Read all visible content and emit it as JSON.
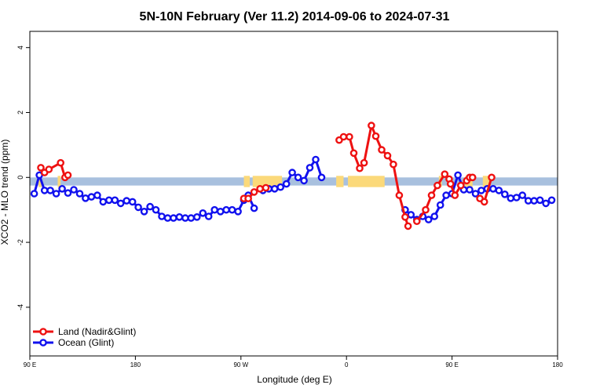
{
  "chart_data": {
    "type": "line",
    "title": "5N-10N February (Ver 11.2)   2014-09-06 to 2024-07-31",
    "xlabel": "Longitude (deg E)",
    "ylabel": "XCO2 - MLO trend (ppm)",
    "xlim": [
      90,
      450
    ],
    "ylim": [
      -5.5,
      4.5
    ],
    "x_ticks": [
      {
        "value": 90,
        "label": "90 E"
      },
      {
        "value": 162,
        "label": "180"
      },
      {
        "value": 234,
        "label": "90 W"
      },
      {
        "value": 306,
        "label": "0"
      },
      {
        "value": 378,
        "label": "90 E"
      },
      {
        "value": 450,
        "label": "180"
      }
    ],
    "y_ticks": [
      {
        "value": -4,
        "label": "-4"
      },
      {
        "value": -2,
        "label": "-2"
      },
      {
        "value": 0,
        "label": "0"
      },
      {
        "value": 2,
        "label": "2"
      },
      {
        "value": 4,
        "label": "4"
      }
    ],
    "background_band": {
      "y_range": [
        -0.25,
        0.0
      ],
      "ocean_color": "#a8c0de",
      "land_color": "#fbd97a"
    },
    "land_spans": [
      [
        96,
        98
      ],
      [
        109,
        111
      ],
      [
        236,
        240
      ],
      [
        242,
        262
      ],
      [
        299,
        304
      ],
      [
        307,
        332
      ],
      [
        369,
        371
      ],
      [
        387,
        392
      ],
      [
        399,
        404
      ]
    ],
    "legend": {
      "placement": "bottom-left",
      "entries": [
        {
          "name": "Land (Nadir&Glint)",
          "color": "#ee1111"
        },
        {
          "name": "Ocean (Glint)",
          "color": "#1111ee"
        }
      ]
    },
    "series": [
      {
        "name": "Land (Nadir&Glint)",
        "color": "#ee1111",
        "segments": [
          [
            [
              97.5,
              0.3
            ],
            [
              100,
              0.15
            ],
            [
              103,
              0.25
            ],
            [
              111,
              0.45
            ],
            [
              114,
              0.0
            ],
            [
              116,
              0.07
            ]
          ],
          [
            [
              236,
              -0.65
            ],
            [
              239,
              -0.65
            ],
            [
              243,
              -0.45
            ],
            [
              247,
              -0.35
            ],
            [
              251,
              -0.32
            ]
          ],
          [
            [
              301,
              1.15
            ],
            [
              304,
              1.25
            ],
            [
              308,
              1.25
            ],
            [
              311,
              0.75
            ],
            [
              315,
              0.28
            ],
            [
              318,
              0.45
            ],
            [
              323,
              1.6
            ],
            [
              326,
              1.27
            ],
            [
              330,
              0.85
            ],
            [
              334,
              0.67
            ],
            [
              338,
              0.4
            ],
            [
              342,
              -0.55
            ],
            [
              346,
              -1.22
            ],
            [
              348,
              -1.5
            ]
          ],
          [
            [
              354,
              -1.35
            ],
            [
              360,
              -1.0
            ],
            [
              364,
              -0.55
            ],
            [
              368,
              -0.25
            ],
            [
              373,
              0.1
            ],
            [
              376,
              -0.05
            ],
            [
              377,
              -0.2
            ],
            [
              380,
              -0.55
            ],
            [
              384,
              -0.25
            ],
            [
              388,
              -0.1
            ],
            [
              390,
              0.0
            ],
            [
              392,
              0.0
            ]
          ],
          [
            [
              397,
              -0.65
            ],
            [
              400,
              -0.75
            ],
            [
              405,
              0.0
            ]
          ]
        ]
      },
      {
        "name": "Ocean (Glint)",
        "color": "#1111ee",
        "segments": [
          [
            [
              93,
              -0.5
            ],
            [
              96.5,
              0.07
            ],
            [
              100,
              -0.4
            ],
            [
              104,
              -0.4
            ],
            [
              108,
              -0.5
            ],
            [
              112,
              -0.35
            ],
            [
              116,
              -0.48
            ],
            [
              120,
              -0.38
            ],
            [
              124,
              -0.5
            ],
            [
              128,
              -0.64
            ],
            [
              132,
              -0.6
            ],
            [
              136,
              -0.55
            ],
            [
              140,
              -0.75
            ],
            [
              144,
              -0.7
            ],
            [
              148,
              -0.7
            ],
            [
              152,
              -0.8
            ],
            [
              156,
              -0.72
            ],
            [
              160,
              -0.75
            ],
            [
              164,
              -0.92
            ],
            [
              168,
              -1.05
            ],
            [
              172,
              -0.9
            ],
            [
              176,
              -1.0
            ],
            [
              180,
              -1.2
            ],
            [
              184,
              -1.25
            ],
            [
              188,
              -1.25
            ],
            [
              192,
              -1.22
            ],
            [
              196,
              -1.25
            ],
            [
              200,
              -1.25
            ],
            [
              204,
              -1.22
            ],
            [
              208,
              -1.1
            ],
            [
              212,
              -1.2
            ],
            [
              216,
              -1.0
            ],
            [
              220,
              -1.05
            ],
            [
              224,
              -1.0
            ],
            [
              228,
              -1.0
            ],
            [
              232,
              -1.05
            ],
            [
              236,
              -0.7
            ],
            [
              239,
              -0.55
            ],
            [
              243,
              -0.95
            ]
          ],
          [
            [
              249,
              -0.4
            ],
            [
              253,
              -0.35
            ],
            [
              257,
              -0.35
            ],
            [
              261,
              -0.3
            ],
            [
              265,
              -0.2
            ],
            [
              269,
              0.15
            ],
            [
              273,
              0.0
            ],
            [
              277,
              -0.1
            ],
            [
              281,
              0.3
            ],
            [
              285,
              0.55
            ],
            [
              289,
              0.0
            ]
          ],
          [
            [
              346,
              -1.0
            ],
            [
              350,
              -1.15
            ],
            [
              354,
              -1.3
            ],
            [
              358,
              -1.2
            ],
            [
              362,
              -1.3
            ],
            [
              366,
              -1.2
            ],
            [
              370,
              -0.85
            ],
            [
              374,
              -0.55
            ],
            [
              378,
              -0.5
            ],
            [
              382,
              0.07
            ],
            [
              386,
              -0.38
            ],
            [
              390,
              -0.38
            ],
            [
              394,
              -0.5
            ],
            [
              398,
              -0.4
            ],
            [
              402,
              -0.35
            ],
            [
              406,
              -0.35
            ],
            [
              410,
              -0.4
            ],
            [
              414,
              -0.52
            ],
            [
              418,
              -0.64
            ],
            [
              422,
              -0.62
            ],
            [
              426,
              -0.55
            ],
            [
              430,
              -0.72
            ],
            [
              434,
              -0.72
            ],
            [
              438,
              -0.7
            ],
            [
              442,
              -0.8
            ],
            [
              446,
              -0.7
            ]
          ]
        ]
      }
    ]
  }
}
